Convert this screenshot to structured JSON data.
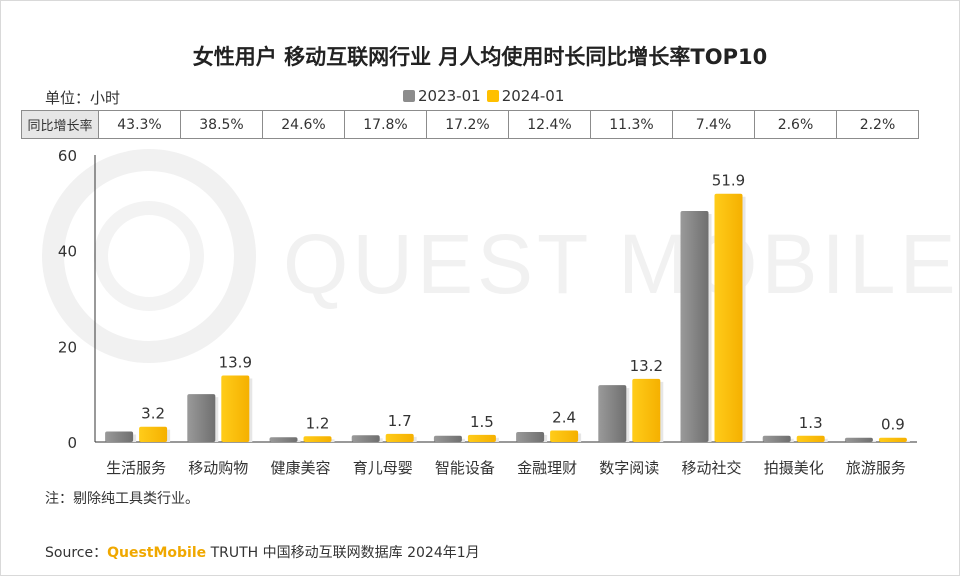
{
  "title": "女性用户 移动互联网行业 月人均使用时长同比增长率TOP10",
  "unit_label": "单位：小时",
  "legend": [
    {
      "name": "2023-01",
      "color": "#8c8c8c"
    },
    {
      "name": "2024-01",
      "color": "#ffc000"
    }
  ],
  "growth_row": {
    "label": "同比增长率",
    "values": [
      "43.3%",
      "38.5%",
      "24.6%",
      "17.8%",
      "17.2%",
      "12.4%",
      "11.3%",
      "7.4%",
      "2.6%",
      "2.2%"
    ]
  },
  "chart_data": {
    "type": "bar",
    "categories": [
      "生活服务",
      "移动购物",
      "健康美容",
      "育儿母婴",
      "智能设备",
      "金融理财",
      "数字阅读",
      "移动社交",
      "拍摄美化",
      "旅游服务"
    ],
    "series": [
      {
        "name": "2023-01",
        "values": [
          2.2,
          10.0,
          1.0,
          1.4,
          1.3,
          2.1,
          11.9,
          48.3,
          1.3,
          0.9
        ],
        "labels": [
          "",
          "",
          "",
          "",
          "",
          "",
          "",
          "",
          "",
          ""
        ]
      },
      {
        "name": "2024-01",
        "values": [
          3.2,
          13.9,
          1.2,
          1.7,
          1.5,
          2.4,
          13.2,
          51.9,
          1.3,
          0.9
        ],
        "labels": [
          "3.2",
          "13.9",
          "1.2",
          "1.7",
          "1.5",
          "2.4",
          "13.2",
          "51.9",
          "1.3",
          "0.9"
        ]
      }
    ],
    "y_ticks": [
      "0",
      "20",
      "40",
      "60"
    ],
    "ylim": [
      0,
      60
    ],
    "grid": false,
    "legend_position": "top-center"
  },
  "watermark": "QUEST MOBILE",
  "note": "注：剔除纯工具类行业。",
  "source": {
    "prefix": "Source：",
    "brand": "QuestMobile",
    "suffix": " TRUTH 中国移动互联网数据库 2024年1月"
  }
}
